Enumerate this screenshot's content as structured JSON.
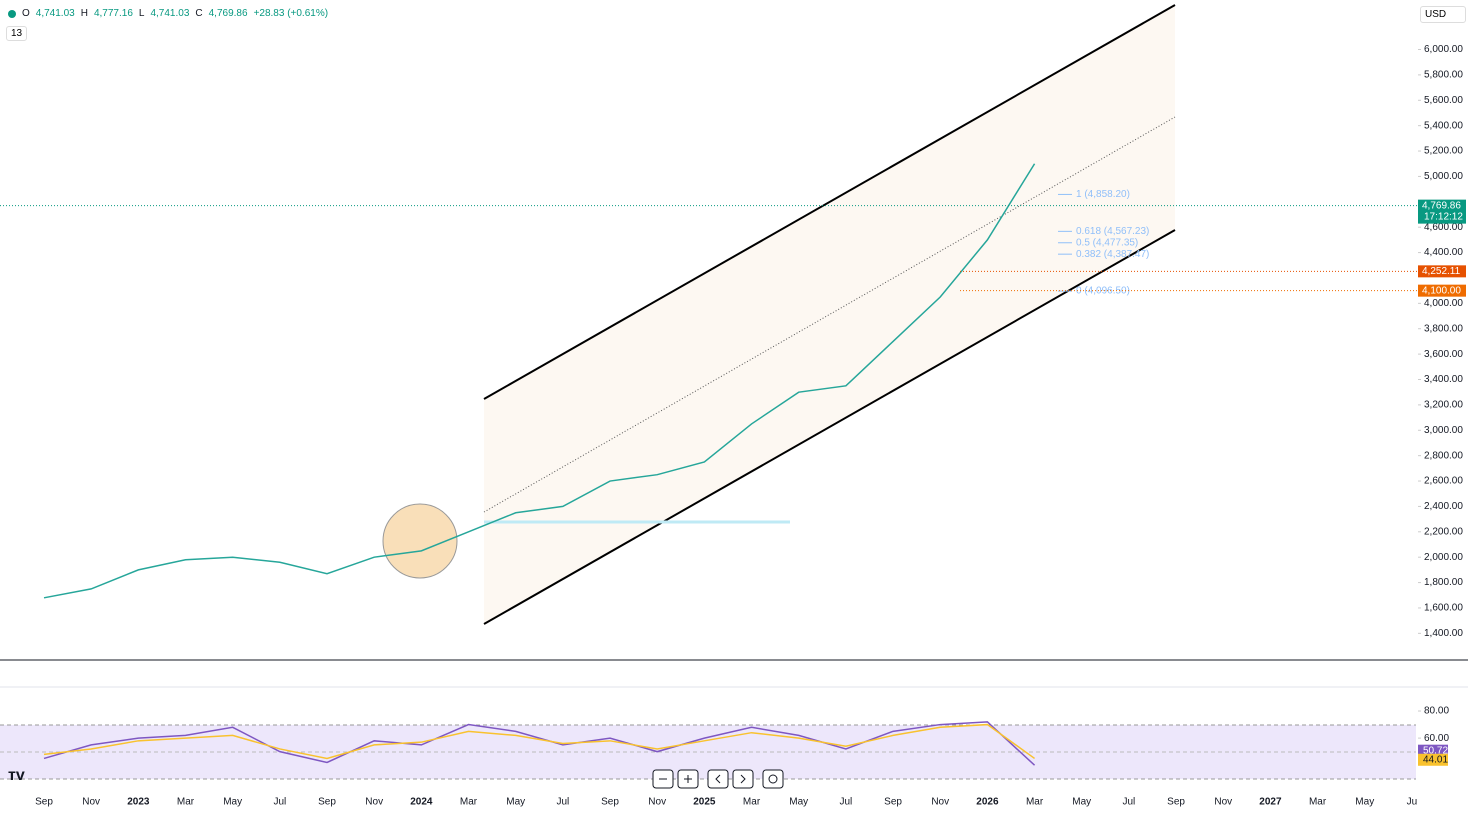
{
  "header": {
    "ohlc": [
      {
        "label": "O",
        "value": "4,741.03"
      },
      {
        "label": "H",
        "value": "4,777.16"
      },
      {
        "label": "L",
        "value": "4,741.03"
      },
      {
        "label": "C",
        "value": "4,769.86"
      }
    ],
    "change": "+28.83 (+0.61%)",
    "indicators": "13",
    "currency": "USD"
  },
  "chart_data": [
    {
      "type": "line",
      "categories": [
        "Sep",
        "Nov",
        "2023",
        "Mar",
        "May",
        "Jul",
        "Sep",
        "Nov",
        "2024",
        "Mar",
        "May",
        "Jul",
        "Sep",
        "Nov",
        "2025",
        "Mar",
        "May",
        "Jul",
        "Sep",
        "Nov",
        "2026",
        "Mar",
        "May",
        "Jul",
        "Sep",
        "Nov",
        "2027",
        "Mar",
        "May",
        "Ju"
      ],
      "values": [
        1680,
        1750,
        1900,
        1980,
        2000,
        1960,
        1870,
        2000,
        2050,
        2200,
        2350,
        2400,
        2600,
        2650,
        2750,
        3050,
        3300,
        3350,
        3700,
        4050,
        4500,
        5100,
        null,
        null,
        null,
        null,
        null,
        null,
        null,
        null
      ],
      "color": "#26a69a",
      "ylim": [
        1190,
        6390
      ],
      "yticks": [
        {
          "value": 6000,
          "label": "6,000.00"
        },
        {
          "value": 5800,
          "label": "5,800.00"
        },
        {
          "value": 5600,
          "label": "5,600.00"
        },
        {
          "value": 5400,
          "label": "5,400.00"
        },
        {
          "value": 5200,
          "label": "5,200.00"
        },
        {
          "value": 5000,
          "label": "5,000.00"
        },
        {
          "value": 4600,
          "label": "4,600.00"
        },
        {
          "value": 4400,
          "label": "4,400.00"
        },
        {
          "value": 4000,
          "label": "4,000.00"
        },
        {
          "value": 3800,
          "label": "3,800.00"
        },
        {
          "value": 3600,
          "label": "3,600.00"
        },
        {
          "value": 3400,
          "label": "3,400.00"
        },
        {
          "value": 3200,
          "label": "3,200.00"
        },
        {
          "value": 3000,
          "label": "3,000.00"
        },
        {
          "value": 2800,
          "label": "2,800.00"
        },
        {
          "value": 2600,
          "label": "2,600.00"
        },
        {
          "value": 2400,
          "label": "2,400.00"
        },
        {
          "value": 2200,
          "label": "2,200.00"
        },
        {
          "value": 2000,
          "label": "2,000.00"
        },
        {
          "value": 1800,
          "label": "1,800.00"
        },
        {
          "value": 1600,
          "label": "1,600.00"
        },
        {
          "value": 1400,
          "label": "1,400.00"
        }
      ],
      "price_badges": [
        {
          "value": 4769.86,
          "label": "4,769.86",
          "color": "#089981",
          "timer": "17:12:12"
        },
        {
          "value": 4252.11,
          "label": "4,252.11",
          "color": "#e65100"
        },
        {
          "value": 4100,
          "label": "4,100.00",
          "color": "#ef6c00"
        }
      ],
      "fib_levels": [
        {
          "value": 4858.2,
          "label": "1 (4,858.20)"
        },
        {
          "value": 4567.23,
          "label": "0.618 (4,567.23)"
        },
        {
          "value": 4477.35,
          "label": "0.5 (4,477.35)"
        },
        {
          "value": 4387.47,
          "label": "0.382 (4,387.47)"
        },
        {
          "value": 4096.5,
          "label": "0 (4,096.50)"
        }
      ],
      "fib_color": "#90bff9"
    },
    {
      "type": "line",
      "series": [
        {
          "color": "#7e57c2",
          "values": [
            45,
            55,
            60,
            62,
            68,
            50,
            42,
            58,
            55,
            70,
            65,
            55,
            60,
            50,
            60,
            68,
            62,
            52,
            65,
            70,
            72,
            40,
            null,
            null,
            null,
            null,
            null,
            null,
            null,
            null
          ]
        },
        {
          "color": "#f9c22e",
          "values": [
            48,
            52,
            58,
            60,
            62,
            52,
            45,
            55,
            57,
            65,
            62,
            56,
            58,
            52,
            58,
            64,
            60,
            54,
            62,
            68,
            70,
            45,
            null,
            null,
            null,
            null,
            null,
            null,
            null,
            null
          ]
        }
      ],
      "ylim": [
        18,
        97
      ],
      "yticks": [
        {
          "value": 80,
          "label": "80.00"
        },
        {
          "value": 60,
          "label": "60.00"
        }
      ],
      "value_badges": [
        {
          "value": 50.72,
          "label": "50.72",
          "color": "#7e57c2"
        },
        {
          "value": 44.01,
          "label": "44.01",
          "color": "#f9c22e"
        }
      ]
    }
  ]
}
